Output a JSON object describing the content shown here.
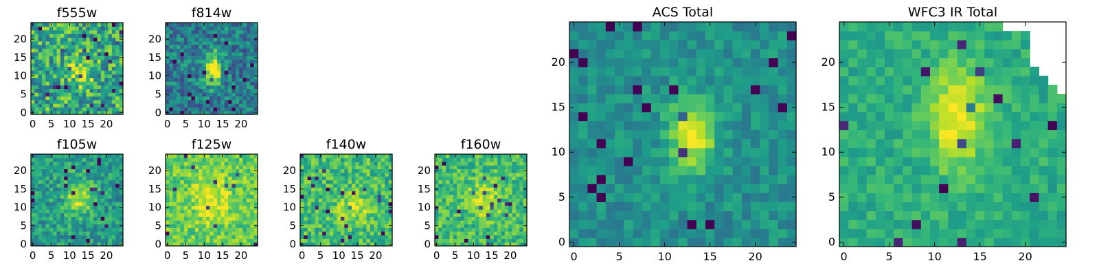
{
  "figure": {
    "colormap": "viridis",
    "colormap_stops": [
      "#440154",
      "#482878",
      "#3e4989",
      "#31688e",
      "#26828e",
      "#1f9e89",
      "#35b779",
      "#6ece58",
      "#b5de2b",
      "#fde725"
    ]
  },
  "chart_data": [
    {
      "type": "heatmap",
      "title": "f555w",
      "grid_size": 25,
      "xticks": [
        0,
        5,
        10,
        15,
        20
      ],
      "yticks": [
        0,
        5,
        10,
        15,
        20
      ],
      "seed": 11,
      "peak": {
        "x": 13,
        "y": 11,
        "sx": 2.2,
        "sy": 3.0,
        "amp": 0.35
      },
      "base": 0.6,
      "noise": 0.55,
      "masked": []
    },
    {
      "type": "heatmap",
      "title": "f814w",
      "grid_size": 25,
      "xticks": [
        0,
        5,
        10,
        15,
        20
      ],
      "yticks": [
        0,
        5,
        10,
        15,
        20
      ],
      "seed": 23,
      "peak": {
        "x": 12.5,
        "y": 12,
        "sx": 1.6,
        "sy": 3.2,
        "amp": 0.65
      },
      "base": 0.42,
      "noise": 0.4,
      "masked": []
    },
    {
      "type": "heatmap",
      "title": "f105w",
      "grid_size": 25,
      "xticks": [
        0,
        5,
        10,
        15,
        20
      ],
      "yticks": [
        0,
        5,
        10,
        15,
        20
      ],
      "seed": 37,
      "peak": {
        "x": 12.5,
        "y": 13,
        "sx": 2.5,
        "sy": 3.5,
        "amp": 0.35
      },
      "base": 0.55,
      "noise": 0.35,
      "masked": []
    },
    {
      "type": "heatmap",
      "title": "f125w",
      "grid_size": 25,
      "xticks": [
        0,
        5,
        10,
        15,
        20
      ],
      "yticks": [
        0,
        5,
        10,
        15,
        20
      ],
      "seed": 41,
      "peak": {
        "x": 12,
        "y": 12,
        "sx": 4,
        "sy": 5,
        "amp": 0.2
      },
      "base": 0.75,
      "noise": 0.3,
      "masked": []
    },
    {
      "type": "heatmap",
      "title": "f140w",
      "grid_size": 25,
      "xticks": [
        0,
        5,
        10,
        15,
        20
      ],
      "yticks": [
        0,
        5,
        10,
        15,
        20
      ],
      "seed": 53,
      "peak": {
        "x": 14,
        "y": 10,
        "sx": 3,
        "sy": 3,
        "amp": 0.25
      },
      "base": 0.68,
      "noise": 0.35,
      "masked": []
    },
    {
      "type": "heatmap",
      "title": "f160w",
      "grid_size": 25,
      "xticks": [
        0,
        5,
        10,
        15,
        20
      ],
      "yticks": [
        0,
        5,
        10,
        15,
        20
      ],
      "seed": 67,
      "peak": {
        "x": 13,
        "y": 12,
        "sx": 3,
        "sy": 3.5,
        "amp": 0.25
      },
      "base": 0.68,
      "noise": 0.33,
      "masked": []
    },
    {
      "type": "heatmap",
      "title": "ACS Total",
      "grid_size": 25,
      "xticks": [
        0,
        5,
        10,
        15,
        20
      ],
      "yticks": [
        0,
        5,
        10,
        15,
        20
      ],
      "seed": 79,
      "peak": {
        "x": 13,
        "y": 12,
        "sx": 1.8,
        "sy": 2.8,
        "amp": 0.5
      },
      "base": 0.5,
      "noise": 0.22,
      "masked": []
    },
    {
      "type": "heatmap",
      "title": "WFC3 IR Total",
      "grid_size": 25,
      "xticks": [
        0,
        5,
        10,
        15,
        20
      ],
      "yticks": [
        0,
        5,
        10,
        15,
        20
      ],
      "seed": 97,
      "peak": {
        "x": 12.5,
        "y": 14,
        "sx": 2.2,
        "sy": 4.0,
        "amp": 0.4
      },
      "base": 0.62,
      "noise": 0.2,
      "masked": [
        [
          18,
          24
        ],
        [
          19,
          24
        ],
        [
          20,
          24
        ],
        [
          21,
          24
        ],
        [
          22,
          24
        ],
        [
          23,
          24
        ],
        [
          24,
          24
        ],
        [
          21,
          23
        ],
        [
          22,
          23
        ],
        [
          23,
          23
        ],
        [
          24,
          23
        ],
        [
          21,
          22
        ],
        [
          22,
          22
        ],
        [
          23,
          22
        ],
        [
          24,
          22
        ],
        [
          21,
          21
        ],
        [
          22,
          21
        ],
        [
          23,
          21
        ],
        [
          24,
          21
        ],
        [
          21,
          20
        ],
        [
          22,
          20
        ],
        [
          23,
          20
        ],
        [
          24,
          20
        ],
        [
          22,
          19
        ],
        [
          23,
          19
        ],
        [
          24,
          19
        ],
        [
          23,
          18
        ],
        [
          24,
          18
        ],
        [
          24,
          17
        ]
      ]
    }
  ]
}
